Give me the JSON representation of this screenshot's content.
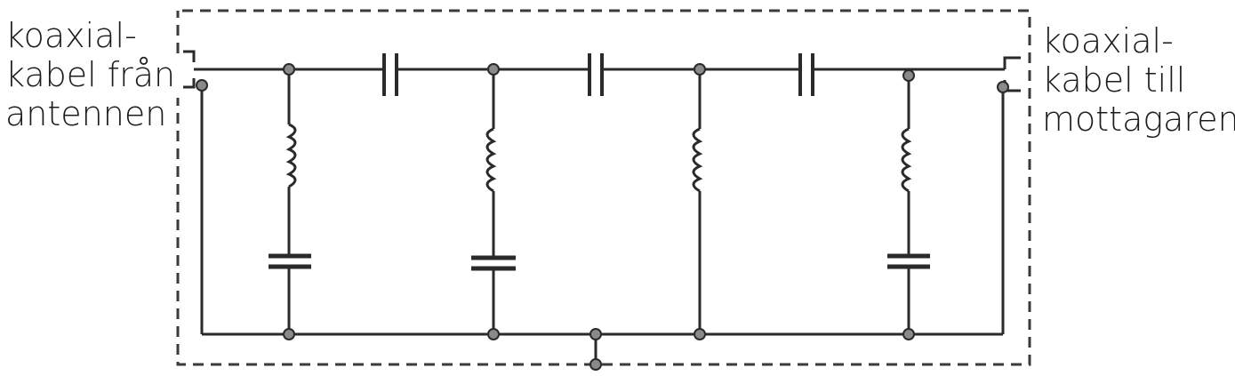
{
  "labels": {
    "input": [
      "koaxial-",
      "kabel från",
      "antennen"
    ],
    "output": [
      "koaxial-",
      "kabel till",
      "mottagaren"
    ]
  },
  "colors": {
    "line": "#2a2a2a",
    "node": "#8a8a8a",
    "shield": "#3a3a3a"
  }
}
